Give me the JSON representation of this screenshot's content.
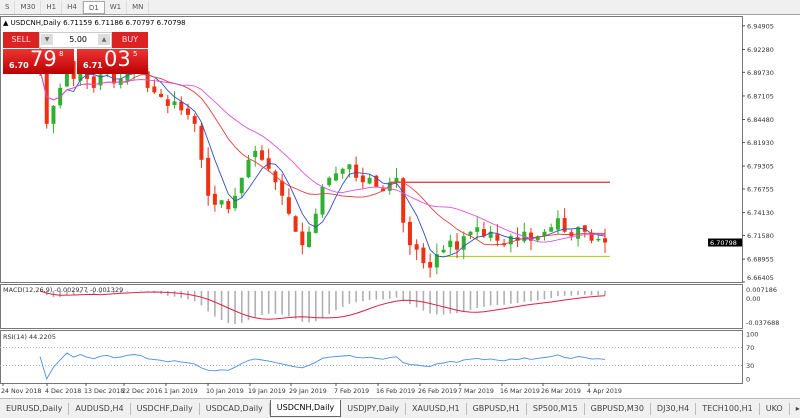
{
  "toolbar": {
    "timeframes": [
      "S",
      "M30",
      "H1",
      "H4",
      "D1",
      "W1",
      "MN"
    ],
    "active": "D1"
  },
  "chart_header": {
    "symbol": "USDCNH,Daily",
    "ohlc": "6.71159 6.71186 6.70797 6.70798"
  },
  "trade_panel": {
    "sell_label": "SELL",
    "buy_label": "BUY",
    "lot": "5.00",
    "sell_small": "6.70",
    "sell_big": "79",
    "sell_pip": "8",
    "buy_small": "6.71",
    "buy_big": "03",
    "buy_pip": "5"
  },
  "chart_data": {
    "type": "candlestick",
    "price_ticks": [
      "6.94905",
      "6.92280",
      "6.89730",
      "6.87105",
      "6.84480",
      "6.81930",
      "6.79305",
      "6.76755",
      "6.74130",
      "6.71580",
      "6.68955",
      "6.66405"
    ],
    "price_range": [
      6.66405,
      6.96
    ],
    "current_price": "6.70798",
    "date_ticks": [
      "24 Nov 2018",
      "4 Dec 2018",
      "13 Dec 2018",
      "22 Dec 2016",
      "1 Jan 2019",
      "10 Jan 2019",
      "19 Jan 2019",
      "29 Jan 2019",
      "7 Feb 2019",
      "16 Feb 2019",
      "26 Feb 2019",
      "7 Mar 2019",
      "16 Mar 2019",
      "26 Mar 2019",
      "4 Apr 2019"
    ],
    "closes": [
      6.9,
      6.84,
      6.86,
      6.88,
      6.91,
      6.89,
      6.905,
      6.89,
      6.88,
      6.895,
      6.9,
      6.885,
      6.89,
      6.9,
      6.905,
      6.9,
      6.88,
      6.875,
      6.87,
      6.86,
      6.865,
      6.855,
      6.85,
      6.84,
      6.8,
      6.76,
      6.75,
      6.755,
      6.745,
      6.76,
      6.78,
      6.8,
      6.81,
      6.8,
      6.79,
      6.775,
      6.76,
      6.74,
      6.72,
      6.705,
      6.72,
      6.74,
      6.77,
      6.78,
      6.785,
      6.79,
      6.795,
      6.78,
      6.775,
      6.78,
      6.77,
      6.765,
      6.775,
      6.78,
      6.73,
      6.705,
      6.7,
      6.685,
      6.68,
      6.695,
      6.7,
      6.71,
      6.7,
      6.715,
      6.72,
      6.725,
      6.715,
      6.72,
      6.71,
      6.705,
      6.715,
      6.71,
      6.72,
      6.71,
      6.715,
      6.72,
      6.725,
      6.735,
      6.72,
      6.715,
      6.725,
      6.72,
      6.71,
      6.712,
      6.708
    ],
    "hlines": [
      {
        "price": 6.775,
        "color": "#e03030"
      },
      {
        "price": 6.6925,
        "color": "#a8d820"
      }
    ],
    "ma_colors": [
      "#3050c0",
      "#e04040",
      "#e050e0"
    ],
    "bull_color": "#30b030",
    "bear_color": "#f03010",
    "macd": {
      "label": "MACD(12,26,9) -0.002977 -0.001329",
      "ticks": [
        "0.007186",
        "0.00",
        "-0.037688"
      ],
      "signal_color": "#e02040"
    },
    "rsi": {
      "label": "RSI(14) 44.2205",
      "ticks": [
        "100",
        "70",
        "30",
        "0"
      ],
      "color": "#4a90e0"
    }
  },
  "tabs": [
    "EURUSD,Daily",
    "AUDUSD,H4",
    "USDCHF,Daily",
    "USDCAD,Daily",
    "USDCNH,Daily",
    "USDJPY,Daily",
    "XAUUSD,H1",
    "GBPUSD,H1",
    "SP500,M15",
    "GBPUSD,M30",
    "DJ30,H4",
    "TECH100,H1",
    "UKO"
  ],
  "active_tab": "USDCNH,Daily"
}
